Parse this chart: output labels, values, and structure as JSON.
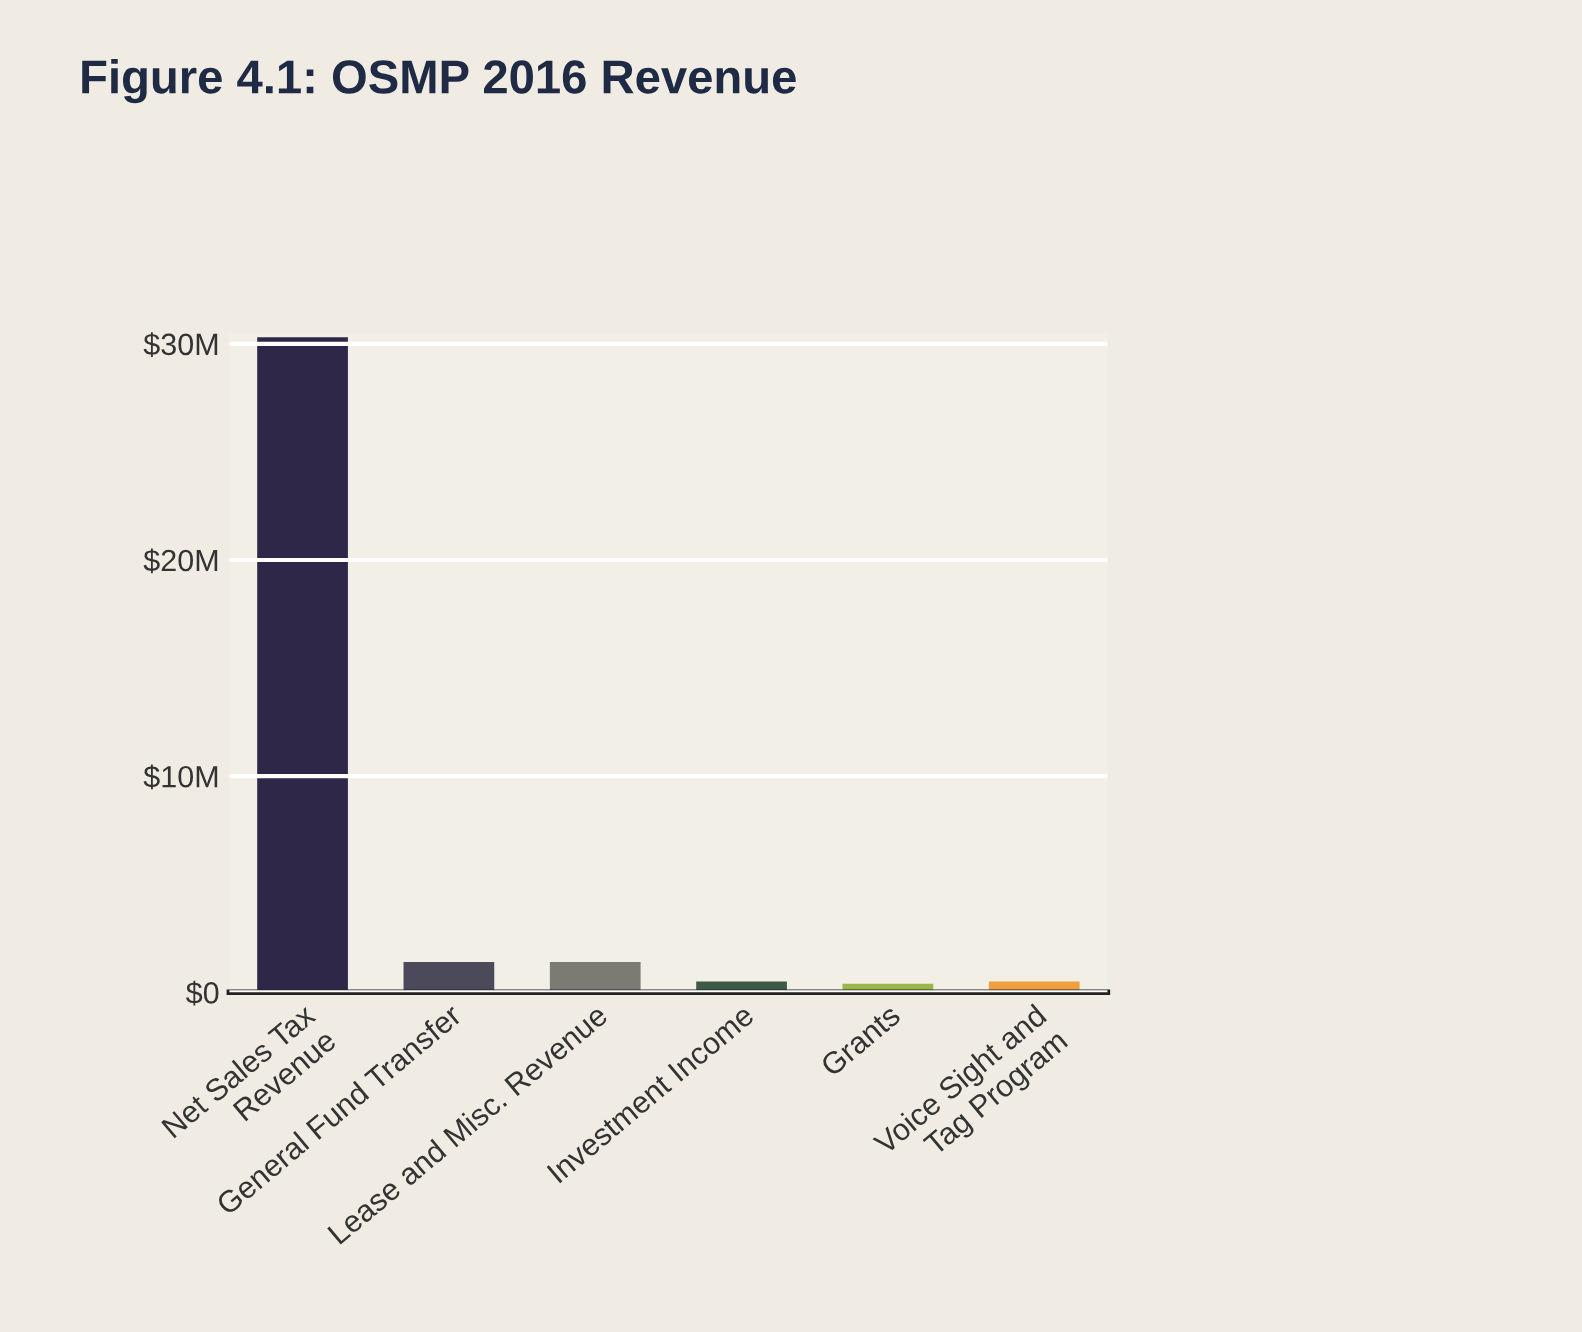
{
  "chart_data": {
    "type": "bar",
    "title": "Figure 4.1: OSMP 2016 Revenue",
    "categories": [
      "Net Sales Tax\nRevenue",
      "General Fund Transfer",
      "Lease and Misc. Revenue",
      "Investment Income",
      "Grants",
      "Voice Sight and\nTag Program"
    ],
    "values": [
      30.3,
      1.4,
      1.4,
      0.5,
      0.4,
      0.5
    ],
    "colors": [
      "#2e2748",
      "#4c4a5a",
      "#7b7a73",
      "#3e5a44",
      "#9cb64a",
      "#f0a040"
    ],
    "ylim": [
      0,
      30.5
    ],
    "yticks": [
      {
        "value": 0,
        "label": "$0"
      },
      {
        "value": 10,
        "label": "$10M"
      },
      {
        "value": 20,
        "label": "$20M"
      },
      {
        "value": 30,
        "label": "$30M"
      }
    ],
    "grid": "y"
  }
}
